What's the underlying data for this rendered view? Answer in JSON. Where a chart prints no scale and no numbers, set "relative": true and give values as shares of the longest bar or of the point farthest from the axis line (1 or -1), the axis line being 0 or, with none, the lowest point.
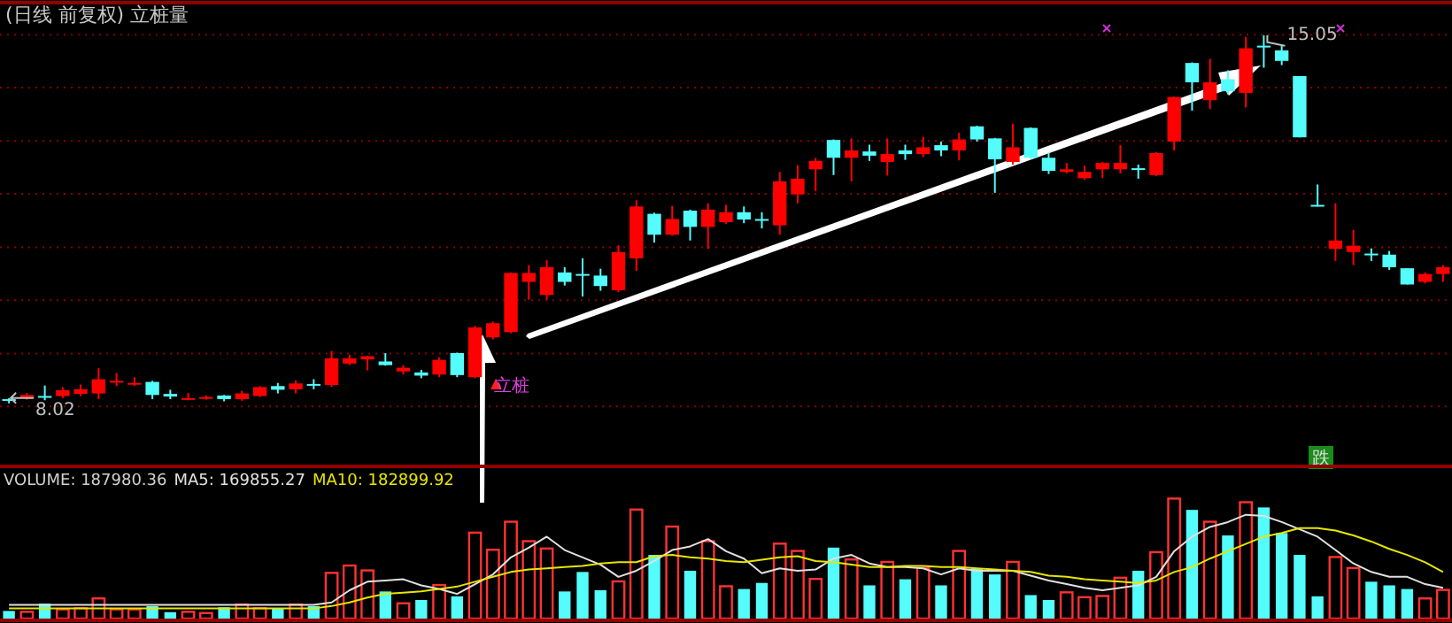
{
  "chart_data": [
    {
      "type": "candlestick",
      "title": "(日线 前复权) 立桩量",
      "categories": [
        null,
        null,
        null,
        null,
        null,
        null,
        null,
        null,
        null,
        null,
        null,
        null,
        null,
        null,
        null,
        null,
        null,
        null,
        null,
        null,
        null,
        null,
        null,
        null,
        null,
        null,
        null,
        null,
        null,
        null,
        null,
        null,
        null,
        null,
        null,
        null,
        null,
        null,
        null,
        null,
        null,
        null,
        null,
        null,
        null,
        null,
        null,
        null,
        null,
        null,
        null,
        null,
        null,
        null,
        null,
        null,
        null,
        null,
        null,
        null,
        null,
        null,
        null,
        null,
        null,
        null,
        null,
        null,
        null,
        null,
        null,
        null,
        null,
        null,
        null,
        null,
        null,
        null,
        null,
        null,
        null
      ],
      "ohlc": [
        [
          8.1,
          8.12,
          8.02,
          8.08
        ],
        [
          8.12,
          8.22,
          8.09,
          8.18
        ],
        [
          8.16,
          8.36,
          8.08,
          8.13
        ],
        [
          8.16,
          8.33,
          8.12,
          8.27
        ],
        [
          8.2,
          8.38,
          8.16,
          8.29
        ],
        [
          8.21,
          8.69,
          8.1,
          8.48
        ],
        [
          8.43,
          8.6,
          8.35,
          8.45
        ],
        [
          8.38,
          8.52,
          8.35,
          8.41
        ],
        [
          8.43,
          8.45,
          8.1,
          8.18
        ],
        [
          8.2,
          8.28,
          8.1,
          8.15
        ],
        [
          8.11,
          8.22,
          8.08,
          8.12
        ],
        [
          8.13,
          8.17,
          8.09,
          8.14
        ],
        [
          8.17,
          8.18,
          8.06,
          8.1
        ],
        [
          8.1,
          8.26,
          8.07,
          8.21
        ],
        [
          8.16,
          8.35,
          8.14,
          8.33
        ],
        [
          8.35,
          8.41,
          8.21,
          8.28
        ],
        [
          8.29,
          8.46,
          8.21,
          8.4
        ],
        [
          8.39,
          8.48,
          8.29,
          8.37
        ],
        [
          8.37,
          9.02,
          8.33,
          8.88
        ],
        [
          8.78,
          8.95,
          8.75,
          8.88
        ],
        [
          8.86,
          8.93,
          8.65,
          8.92
        ],
        [
          8.82,
          8.98,
          8.74,
          8.75
        ],
        [
          8.63,
          8.75,
          8.57,
          8.7
        ],
        [
          8.61,
          8.66,
          8.5,
          8.55
        ],
        [
          8.57,
          8.9,
          8.52,
          8.85
        ],
        [
          8.98,
          8.99,
          8.52,
          8.56
        ],
        [
          8.52,
          9.5,
          8.5,
          9.47
        ],
        [
          9.28,
          9.58,
          9.24,
          9.55
        ],
        [
          9.38,
          10.52,
          9.36,
          10.51
        ],
        [
          10.34,
          10.66,
          10.0,
          10.51
        ],
        [
          10.09,
          10.76,
          10.0,
          10.62
        ],
        [
          10.52,
          10.62,
          10.27,
          10.34
        ],
        [
          10.49,
          10.79,
          10.06,
          10.46
        ],
        [
          10.46,
          10.59,
          10.17,
          10.26
        ],
        [
          10.18,
          11.04,
          10.14,
          10.91
        ],
        [
          10.79,
          11.9,
          10.55,
          11.78
        ],
        [
          11.64,
          11.66,
          11.09,
          11.24
        ],
        [
          11.24,
          11.79,
          11.22,
          11.54
        ],
        [
          11.7,
          11.72,
          11.13,
          11.39
        ],
        [
          11.39,
          11.84,
          10.97,
          11.72
        ],
        [
          11.48,
          11.81,
          11.45,
          11.67
        ],
        [
          11.67,
          11.78,
          11.46,
          11.53
        ],
        [
          11.54,
          11.67,
          11.36,
          11.51
        ],
        [
          11.42,
          12.44,
          11.24,
          12.26
        ],
        [
          12.01,
          12.57,
          11.84,
          12.31
        ],
        [
          12.49,
          12.71,
          12.07,
          12.65
        ],
        [
          13.05,
          13.06,
          12.38,
          12.71
        ],
        [
          12.71,
          13.08,
          12.26,
          12.85
        ],
        [
          12.83,
          12.96,
          12.65,
          12.75
        ],
        [
          12.63,
          13.08,
          12.37,
          12.78
        ],
        [
          12.85,
          12.96,
          12.67,
          12.78
        ],
        [
          12.78,
          13.11,
          12.72,
          12.91
        ],
        [
          12.95,
          13.02,
          12.74,
          12.85
        ],
        [
          12.85,
          13.19,
          12.66,
          13.06
        ],
        [
          13.31,
          13.32,
          13.02,
          13.06
        ],
        [
          13.08,
          13.09,
          12.04,
          12.68
        ],
        [
          12.63,
          13.36,
          12.58,
          12.91
        ],
        [
          13.28,
          13.29,
          12.69,
          12.71
        ],
        [
          12.71,
          12.81,
          12.4,
          12.46
        ],
        [
          12.44,
          12.61,
          12.41,
          12.49
        ],
        [
          12.32,
          12.56,
          12.29,
          12.44
        ],
        [
          12.49,
          12.63,
          12.32,
          12.61
        ],
        [
          12.49,
          12.95,
          12.41,
          12.61
        ],
        [
          12.51,
          12.58,
          12.31,
          12.48
        ],
        [
          12.38,
          12.82,
          12.36,
          12.8
        ],
        [
          13.02,
          13.88,
          12.85,
          13.87
        ],
        [
          14.52,
          14.53,
          13.61,
          14.15
        ],
        [
          13.81,
          14.6,
          13.64,
          14.15
        ],
        [
          14.21,
          14.38,
          13.92,
          13.98
        ],
        [
          13.95,
          15.02,
          13.67,
          14.8
        ],
        [
          14.85,
          15.05,
          14.43,
          14.82
        ],
        [
          14.76,
          14.86,
          14.48,
          14.56
        ],
        [
          14.27,
          14.27,
          13.1,
          13.1
        ],
        [
          11.81,
          12.2,
          11.78,
          11.79
        ],
        [
          10.97,
          11.84,
          10.74,
          11.13
        ],
        [
          10.91,
          11.33,
          10.66,
          11.03
        ],
        [
          10.88,
          10.98,
          10.74,
          10.85
        ],
        [
          10.86,
          10.93,
          10.57,
          10.62
        ],
        [
          10.6,
          10.6,
          10.29,
          10.29
        ],
        [
          10.34,
          10.52,
          10.31,
          10.49
        ],
        [
          10.49,
          10.66,
          10.34,
          10.62
        ]
      ],
      "colors": [
        "#54fcfc",
        "#ff0000",
        "#54fcfc",
        "#ff0000",
        "#ff0000",
        "#ff0000",
        "#ff0000",
        "#ff0000",
        "#54fcfc",
        "#54fcfc",
        "#ff0000",
        "#ff0000",
        "#54fcfc",
        "#ff0000",
        "#ff0000",
        "#54fcfc",
        "#ff0000",
        "#54fcfc",
        "#ff0000",
        "#ff0000",
        "#ff0000",
        "#54fcfc",
        "#ff0000",
        "#54fcfc",
        "#ff0000",
        "#54fcfc",
        "#ff0000",
        "#ff0000",
        "#ff0000",
        "#ff0000",
        "#ff0000",
        "#54fcfc",
        "#54fcfc",
        "#54fcfc",
        "#ff0000",
        "#ff0000",
        "#54fcfc",
        "#ff0000",
        "#54fcfc",
        "#ff0000",
        "#ff0000",
        "#54fcfc",
        "#54fcfc",
        "#ff0000",
        "#ff0000",
        "#ff0000",
        "#54fcfc",
        "#ff0000",
        "#54fcfc",
        "#ff0000",
        "#54fcfc",
        "#ff0000",
        "#54fcfc",
        "#ff0000",
        "#54fcfc",
        "#54fcfc",
        "#ff0000",
        "#54fcfc",
        "#54fcfc",
        "#ff0000",
        "#ff0000",
        "#ff0000",
        "#ff0000",
        "#54fcfc",
        "#ff0000",
        "#ff0000",
        "#54fcfc",
        "#ff0000",
        "#54fcfc",
        "#ff0000",
        "#54fcfc",
        "#54fcfc",
        "#54fcfc",
        "#54fcfc",
        "#ff0000",
        "#ff0000",
        "#54fcfc",
        "#54fcfc",
        "#54fcfc",
        "#ff0000",
        "#ff0000"
      ],
      "yticks": [
        {
          "value": 7.96,
          "label": null
        },
        {
          "value": 8.97,
          "label": null
        },
        {
          "value": 9.99,
          "label": null
        },
        {
          "value": 11.0,
          "label": null
        },
        {
          "value": 12.02,
          "label": null
        },
        {
          "value": 13.03,
          "label": null
        },
        {
          "value": 14.05,
          "label": null
        },
        {
          "value": 15.06,
          "label": null
        }
      ],
      "grid": true,
      "annotations": [
        "8.02",
        "15.05",
        "立桩",
        "跌"
      ]
    },
    {
      "type": "bar",
      "relative": true,
      "legend": "top left",
      "categories": [
        null,
        null,
        null,
        null,
        null,
        null,
        null,
        null,
        null,
        null,
        null,
        null,
        null,
        null,
        null,
        null,
        null,
        null,
        null,
        null,
        null,
        null,
        null,
        null,
        null,
        null,
        null,
        null,
        null,
        null,
        null,
        null,
        null,
        null,
        null,
        null,
        null,
        null,
        null,
        null,
        null,
        null,
        null,
        null,
        null,
        null,
        null,
        null,
        null,
        null,
        null,
        null,
        null,
        null,
        null,
        null,
        null,
        null,
        null,
        null,
        null,
        null,
        null,
        null,
        null,
        null,
        null,
        null,
        null,
        null,
        null,
        null,
        null,
        null,
        null,
        null,
        null,
        null,
        null,
        null,
        null
      ],
      "series": [
        {
          "type": "bar",
          "values": [
            0.07,
            0.07,
            0.13,
            0.09,
            0.1,
            0.18,
            0.09,
            0.09,
            0.11,
            0.06,
            0.07,
            0.06,
            0.1,
            0.13,
            0.1,
            0.09,
            0.13,
            0.11,
            0.39,
            0.45,
            0.41,
            0.23,
            0.14,
            0.16,
            0.29,
            0.19,
            0.72,
            0.58,
            0.81,
            0.65,
            0.59,
            0.23,
            0.39,
            0.24,
            0.32,
            0.91,
            0.53,
            0.77,
            0.4,
            0.65,
            0.28,
            0.25,
            0.3,
            0.63,
            0.57,
            0.34,
            0.59,
            0.5,
            0.28,
            0.48,
            0.33,
            0.43,
            0.28,
            0.57,
            0.42,
            0.37,
            0.48,
            0.2,
            0.16,
            0.23,
            0.19,
            0.2,
            0.35,
            0.4,
            0.56,
            1,
            0.9,
            0.81,
            0.69,
            0.97,
            0.92,
            0.71,
            0.53,
            0.19,
            0.52,
            0.43,
            0.31,
            0.28,
            0.25,
            0.18,
            0.25
          ],
          "colors": [
            "#54fcfc",
            "#ff3232",
            "#54fcfc",
            "#ff3232",
            "#ff3232",
            "#ff3232",
            "#ff3232",
            "#ff3232",
            "#54fcfc",
            "#54fcfc",
            "#ff3232",
            "#ff3232",
            "#54fcfc",
            "#ff3232",
            "#ff3232",
            "#54fcfc",
            "#ff3232",
            "#54fcfc",
            "#ff3232",
            "#ff3232",
            "#ff3232",
            "#54fcfc",
            "#ff3232",
            "#54fcfc",
            "#ff3232",
            "#54fcfc",
            "#ff3232",
            "#ff3232",
            "#ff3232",
            "#ff3232",
            "#ff3232",
            "#54fcfc",
            "#54fcfc",
            "#54fcfc",
            "#ff3232",
            "#ff3232",
            "#54fcfc",
            "#ff3232",
            "#54fcfc",
            "#ff3232",
            "#ff3232",
            "#54fcfc",
            "#54fcfc",
            "#ff3232",
            "#ff3232",
            "#ff3232",
            "#54fcfc",
            "#ff3232",
            "#54fcfc",
            "#ff3232",
            "#54fcfc",
            "#ff3232",
            "#54fcfc",
            "#ff3232",
            "#54fcfc",
            "#54fcfc",
            "#ff3232",
            "#54fcfc",
            "#54fcfc",
            "#ff3232",
            "#ff3232",
            "#ff3232",
            "#ff3232",
            "#54fcfc",
            "#ff3232",
            "#ff3232",
            "#54fcfc",
            "#ff3232",
            "#54fcfc",
            "#ff3232",
            "#54fcfc",
            "#54fcfc",
            "#54fcfc",
            "#54fcfc",
            "#ff3232",
            "#ff3232",
            "#54fcfc",
            "#54fcfc",
            "#54fcfc",
            "#ff3232",
            "#ff3232"
          ]
        },
        {
          "type": "line",
          "name": "MA5: 169855.27",
          "color": "#e0e0e0",
          "values": [
            0.12,
            0.12,
            0.12,
            0.12,
            0.12,
            0.12,
            0.12,
            0.12,
            0.12,
            0.12,
            0.12,
            0.12,
            0.12,
            0.12,
            0.12,
            0.12,
            0.12,
            0.12,
            0.14,
            0.24,
            0.31,
            0.32,
            0.33,
            0.28,
            0.25,
            0.21,
            0.29,
            0.37,
            0.51,
            0.59,
            0.68,
            0.57,
            0.51,
            0.45,
            0.35,
            0.4,
            0.48,
            0.57,
            0.6,
            0.66,
            0.56,
            0.5,
            0.38,
            0.42,
            0.4,
            0.41,
            0.5,
            0.53,
            0.46,
            0.43,
            0.43,
            0.42,
            0.37,
            0.42,
            0.4,
            0.4,
            0.4,
            0.36,
            0.32,
            0.29,
            0.26,
            0.24,
            0.26,
            0.28,
            0.35,
            0.56,
            0.68,
            0.76,
            0.8,
            0.86,
            0.85,
            0.8,
            0.74,
            0.68,
            0.57,
            0.46,
            0.39,
            0.35,
            0.35,
            0.29,
            0.26
          ]
        },
        {
          "type": "line",
          "name": "MA10: 182899.92",
          "color": "#e6e600",
          "values": [
            0.09,
            0.09,
            0.09,
            0.09,
            0.09,
            0.09,
            0.09,
            0.09,
            0.09,
            0.09,
            0.09,
            0.09,
            0.09,
            0.09,
            0.09,
            0.09,
            0.09,
            0.09,
            0.11,
            0.14,
            0.18,
            0.21,
            0.22,
            0.23,
            0.25,
            0.27,
            0.31,
            0.35,
            0.39,
            0.41,
            0.42,
            0.43,
            0.44,
            0.46,
            0.47,
            0.47,
            0.52,
            0.53,
            0.51,
            0.5,
            0.48,
            0.47,
            0.49,
            0.51,
            0.52,
            0.48,
            0.47,
            0.45,
            0.43,
            0.43,
            0.44,
            0.44,
            0.43,
            0.43,
            0.42,
            0.41,
            0.4,
            0.39,
            0.36,
            0.35,
            0.33,
            0.32,
            0.31,
            0.3,
            0.32,
            0.39,
            0.43,
            0.5,
            0.56,
            0.62,
            0.68,
            0.71,
            0.75,
            0.75,
            0.73,
            0.69,
            0.64,
            0.58,
            0.53,
            0.47,
            0.39
          ]
        }
      ],
      "annotations": [
        "VOLUME: 187980.36"
      ]
    }
  ]
}
